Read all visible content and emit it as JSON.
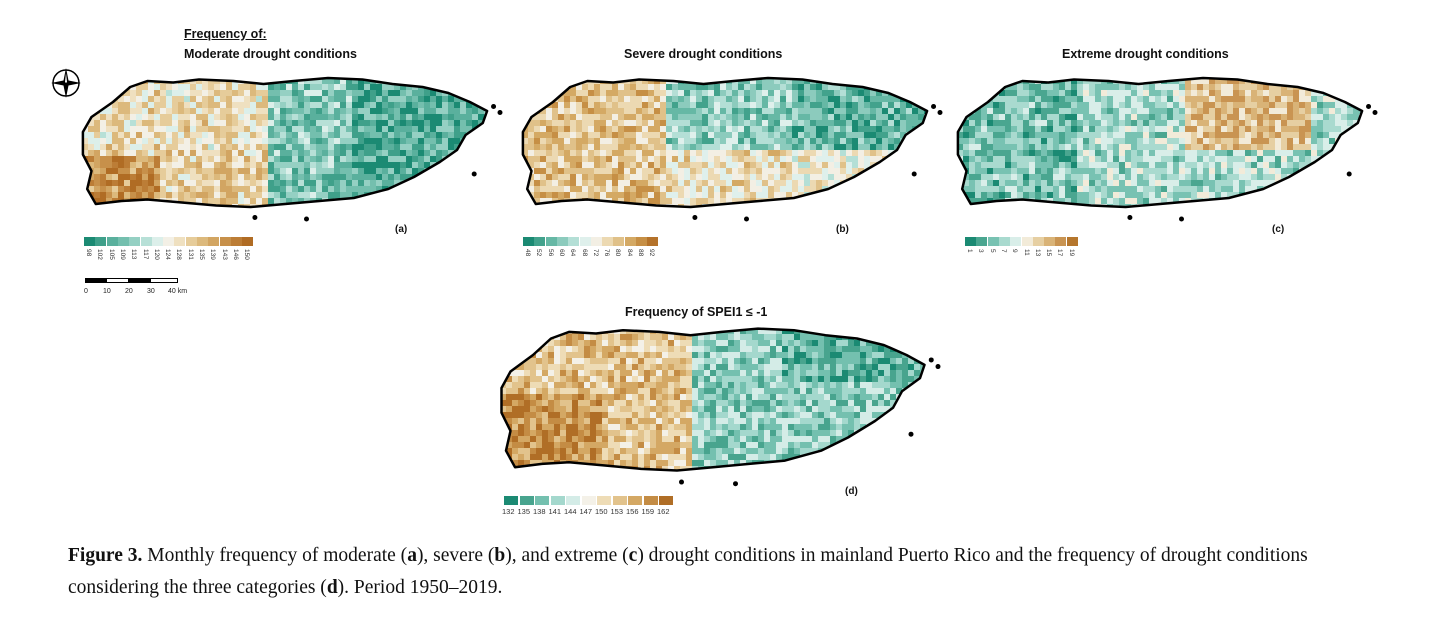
{
  "panels": [
    {
      "id": "a",
      "letter": "(a)",
      "title_lines": [
        "Frequency of:",
        "Moderate drought conditions"
      ],
      "legend_values": [
        "98",
        "102",
        "105",
        "109",
        "113",
        "117",
        "120",
        "124",
        "128",
        "131",
        "135",
        "139",
        "143",
        "146",
        "150"
      ],
      "legend_colors": [
        "#1b8a73",
        "#3fa08a",
        "#5ab09d",
        "#74bfae",
        "#95d0c3",
        "#b7e0d7",
        "#dcefea",
        "#f3f0e6",
        "#efe0c0",
        "#e6cc9a",
        "#dcb97c",
        "#d2a562",
        "#c7904a",
        "#bc7d36",
        "#b06c24"
      ]
    },
    {
      "id": "b",
      "letter": "(b)",
      "title_lines": [
        "Severe drought conditions"
      ],
      "legend_values": [
        "48",
        "52",
        "56",
        "60",
        "64",
        "68",
        "72",
        "76",
        "80",
        "84",
        "88",
        "92"
      ],
      "legend_colors": [
        "#1b8a73",
        "#42a28c",
        "#66b8a5",
        "#8ccbbd",
        "#b4dfd6",
        "#dff0ec",
        "#f3efe4",
        "#ecd9b2",
        "#e0c189",
        "#d4a964",
        "#c68f45",
        "#b4722a"
      ]
    },
    {
      "id": "c",
      "letter": "(c)",
      "title_lines": [
        "Extreme drought conditions"
      ],
      "legend_values": [
        "1",
        "3",
        "5",
        "7",
        "9",
        "11",
        "13",
        "15",
        "17",
        "19"
      ],
      "legend_colors": [
        "#1b8a73",
        "#4aa690",
        "#78c2b2",
        "#a9dacf",
        "#d9eee9",
        "#f2ebd9",
        "#e6cfa2",
        "#d9b377",
        "#c99452",
        "#b5762d"
      ]
    },
    {
      "id": "d",
      "letter": "(d)",
      "title_lines": [
        "Frequency of SPEI1 ≤ -1"
      ],
      "legend_values": [
        "132",
        "135",
        "138",
        "141",
        "144",
        "147",
        "150",
        "153",
        "156",
        "159",
        "162"
      ],
      "legend_colors": [
        "#1b8a73",
        "#48a48e",
        "#74c0af",
        "#a4d8cd",
        "#d4ece7",
        "#f4f1e8",
        "#eedcb6",
        "#e2c38c",
        "#d4a864",
        "#c48c44",
        "#b06e26"
      ]
    }
  ],
  "scalebar": {
    "ticks": [
      "0",
      "10",
      "20",
      "30",
      "40 km"
    ]
  },
  "compass": {
    "icon": "compass-rose-icon"
  },
  "caption": {
    "label": "Figure 3.",
    "text_parts": [
      " Monthly frequency of moderate (",
      "a",
      "), severe (",
      "b",
      "), and extreme (",
      "c",
      ") drought conditions in mainland Puerto Rico and the frequency of drought conditions considering the three categories (",
      "d",
      "). Period 1950–2019."
    ]
  },
  "colors": {
    "teal_dark": "#1b8a73",
    "brown_dark": "#b06c24",
    "outline": "#000000"
  }
}
